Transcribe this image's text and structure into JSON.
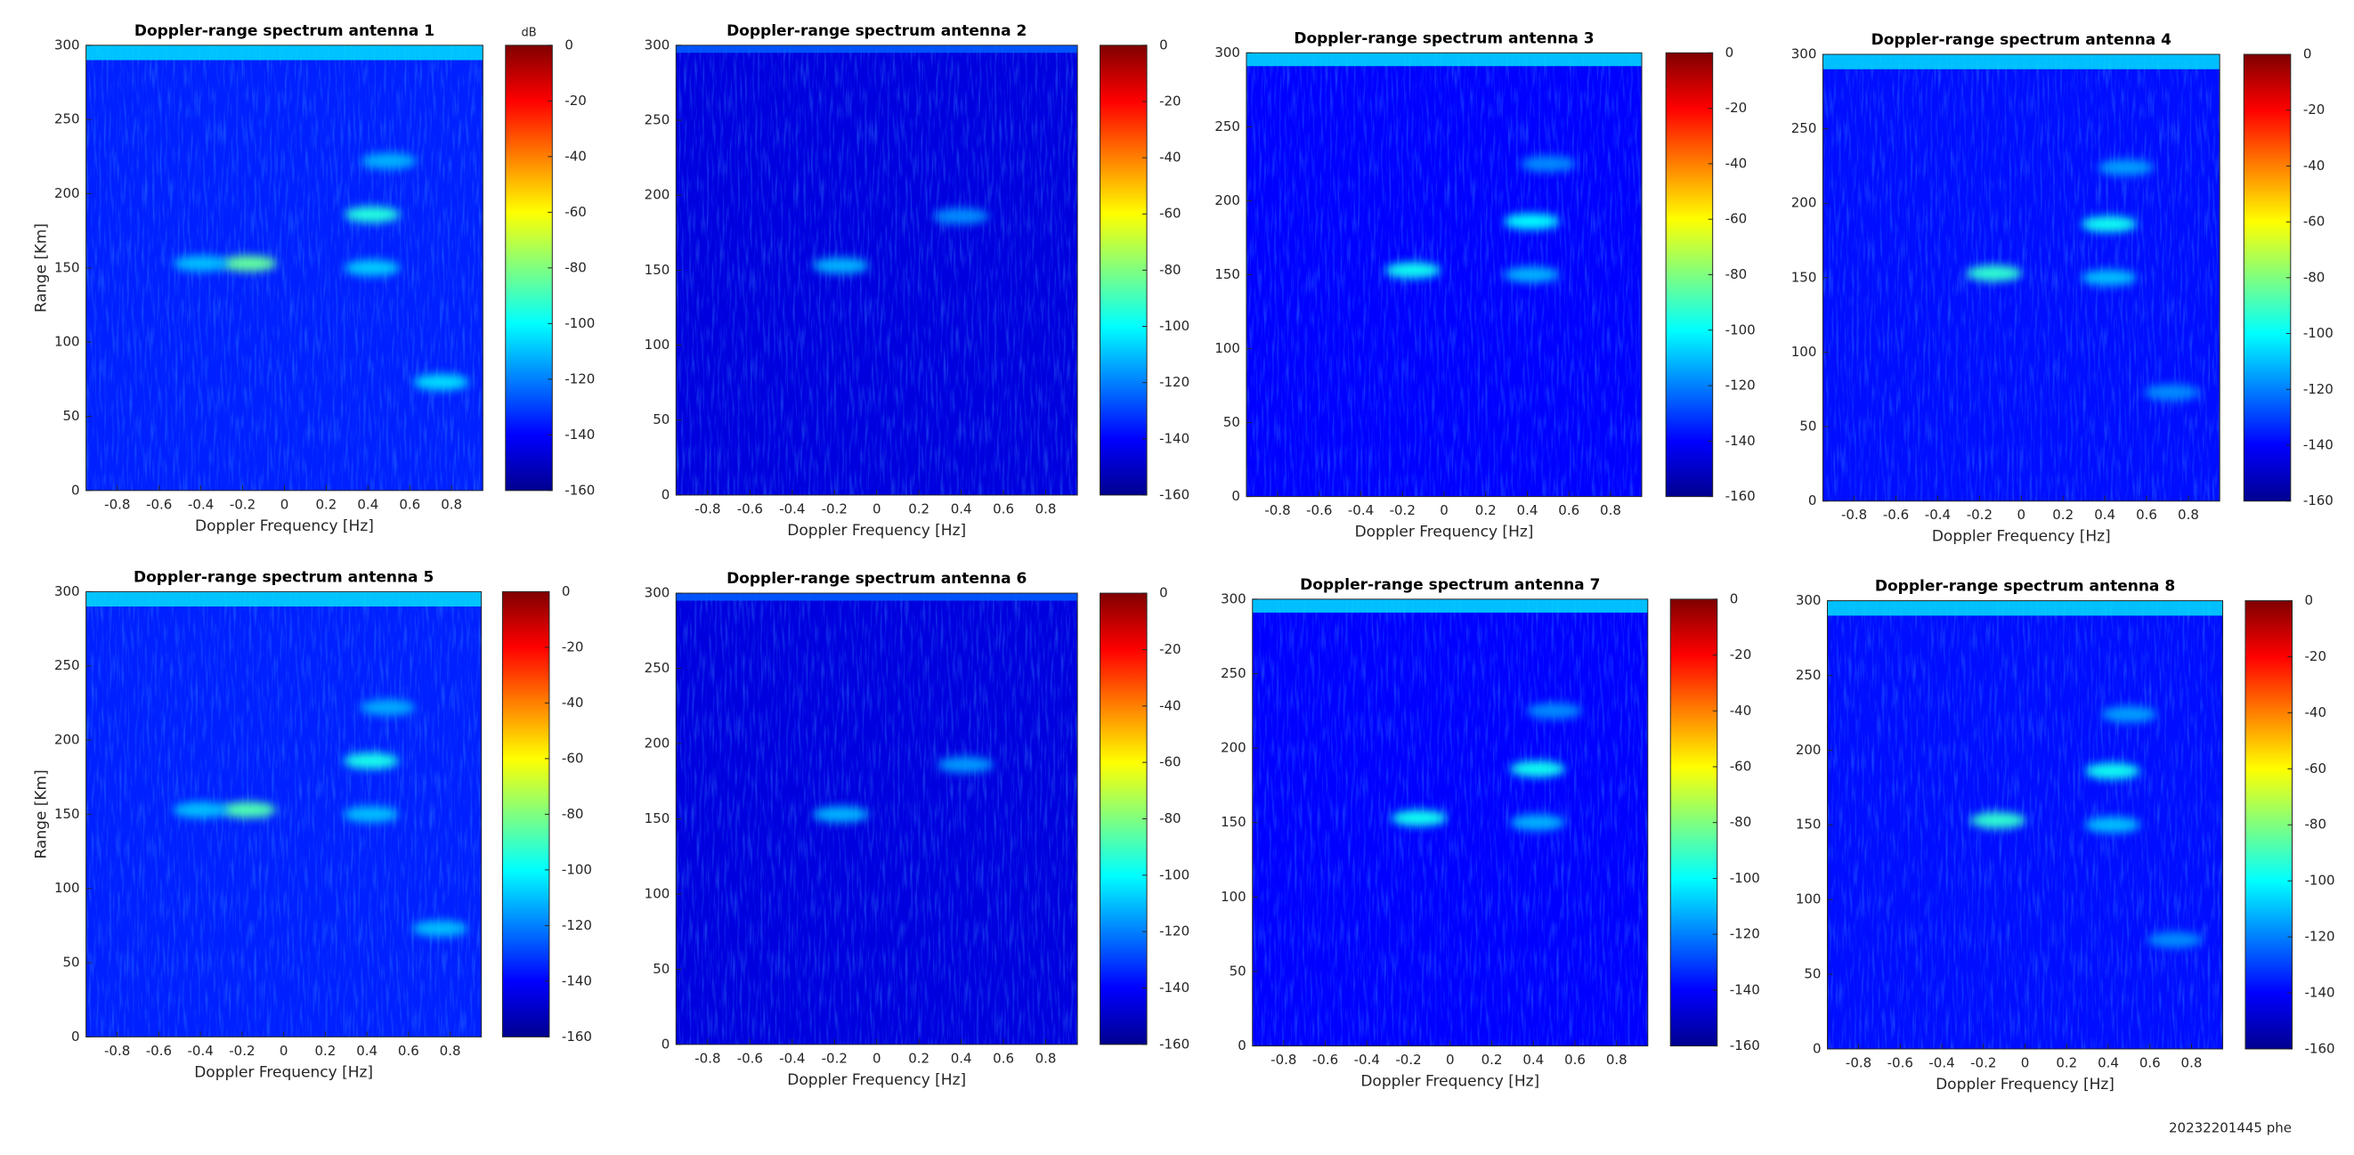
{
  "chart_data": [
    {
      "type": "heatmap",
      "title": "Doppler-range spectrum antenna 1",
      "xlabel": "Doppler Frequency [Hz]",
      "ylabel": "Range [Km]",
      "clabel": "dB",
      "xlim": [
        -0.95,
        0.95
      ],
      "xticks": [
        -0.8,
        -0.6,
        -0.4,
        -0.2,
        0,
        0.2,
        0.4,
        0.6,
        0.8
      ],
      "ylim": [
        0,
        300
      ],
      "yticks": [
        0,
        50,
        100,
        150,
        200,
        250,
        300
      ],
      "clim": [
        -160,
        0
      ],
      "cticks": [
        0,
        -20,
        -40,
        -60,
        -80,
        -100,
        -120,
        -140,
        -160
      ],
      "background": -135,
      "top_band_y": [
        290,
        300
      ],
      "top_band_value": -105,
      "spots": {
        "x": [
          -0.17,
          -0.4,
          0.42,
          0.42,
          0.5,
          0.75
        ],
        "y": [
          153,
          153,
          186,
          150,
          222,
          73
        ],
        "values": [
          -85,
          -110,
          -95,
          -108,
          -112,
          -105
        ]
      }
    },
    {
      "type": "heatmap",
      "title": "Doppler-range spectrum antenna 2",
      "xlabel": "Doppler Frequency [Hz]",
      "xlim": [
        -0.95,
        0.95
      ],
      "xticks": [
        -0.8,
        -0.6,
        -0.4,
        -0.2,
        0,
        0.2,
        0.4,
        0.6,
        0.8
      ],
      "ylim": [
        0,
        300
      ],
      "yticks": [
        0,
        50,
        100,
        150,
        200,
        250,
        300
      ],
      "clim": [
        -160,
        0
      ],
      "cticks": [
        0,
        -20,
        -40,
        -60,
        -80,
        -100,
        -120,
        -140,
        -160
      ],
      "background": -145,
      "top_band_y": [
        295,
        300
      ],
      "top_band_value": -125,
      "spots": {
        "x": [
          -0.17,
          0.4
        ],
        "y": [
          153,
          186
        ],
        "values": [
          -112,
          -118
        ]
      }
    },
    {
      "type": "heatmap",
      "title": "Doppler-range spectrum antenna 3",
      "xlabel": "Doppler Frequency [Hz]",
      "xlim": [
        -0.95,
        0.95
      ],
      "xticks": [
        -0.8,
        -0.6,
        -0.4,
        -0.2,
        0,
        0.2,
        0.4,
        0.6,
        0.8
      ],
      "ylim": [
        0,
        300
      ],
      "yticks": [
        0,
        50,
        100,
        150,
        200,
        250,
        300
      ],
      "clim": [
        -160,
        0
      ],
      "cticks": [
        0,
        -20,
        -40,
        -60,
        -80,
        -100,
        -120,
        -140,
        -160
      ],
      "background": -140,
      "top_band_y": [
        291,
        300
      ],
      "top_band_value": -105,
      "spots": {
        "x": [
          -0.15,
          0.42,
          0.42,
          0.5
        ],
        "y": [
          153,
          186,
          150,
          225
        ],
        "values": [
          -98,
          -100,
          -112,
          -118
        ]
      }
    },
    {
      "type": "heatmap",
      "title": "Doppler-range spectrum antenna 4",
      "xlabel": "Doppler Frequency [Hz]",
      "xlim": [
        -0.95,
        0.95
      ],
      "xticks": [
        -0.8,
        -0.6,
        -0.4,
        -0.2,
        0,
        0.2,
        0.4,
        0.6,
        0.8
      ],
      "ylim": [
        0,
        300
      ],
      "yticks": [
        0,
        50,
        100,
        150,
        200,
        250,
        300
      ],
      "clim": [
        -160,
        0
      ],
      "cticks": [
        0,
        -20,
        -40,
        -60,
        -80,
        -100,
        -120,
        -140,
        -160
      ],
      "background": -138,
      "top_band_y": [
        290,
        300
      ],
      "top_band_value": -105,
      "spots": {
        "x": [
          -0.13,
          0.42,
          0.42,
          0.5,
          0.72
        ],
        "y": [
          153,
          186,
          150,
          224,
          73
        ],
        "values": [
          -93,
          -98,
          -110,
          -115,
          -118
        ]
      }
    },
    {
      "type": "heatmap",
      "title": "Doppler-range spectrum antenna 5",
      "xlabel": "Doppler Frequency [Hz]",
      "ylabel": "Range [Km]",
      "xlim": [
        -0.95,
        0.95
      ],
      "xticks": [
        -0.8,
        -0.6,
        -0.4,
        -0.2,
        0,
        0.2,
        0.4,
        0.6,
        0.8
      ],
      "ylim": [
        0,
        300
      ],
      "yticks": [
        0,
        50,
        100,
        150,
        200,
        250,
        300
      ],
      "clim": [
        -160,
        0
      ],
      "cticks": [
        0,
        -20,
        -40,
        -60,
        -80,
        -100,
        -120,
        -140,
        -160
      ],
      "background": -135,
      "top_band_y": [
        290,
        300
      ],
      "top_band_value": -105,
      "spots": {
        "x": [
          -0.17,
          -0.4,
          0.42,
          0.42,
          0.5,
          0.75
        ],
        "y": [
          153,
          153,
          186,
          150,
          222,
          73
        ],
        "values": [
          -88,
          -110,
          -97,
          -110,
          -113,
          -110
        ]
      }
    },
    {
      "type": "heatmap",
      "title": "Doppler-range spectrum antenna 6",
      "xlabel": "Doppler Frequency [Hz]",
      "xlim": [
        -0.95,
        0.95
      ],
      "xticks": [
        -0.8,
        -0.6,
        -0.4,
        -0.2,
        0,
        0.2,
        0.4,
        0.6,
        0.8
      ],
      "ylim": [
        0,
        300
      ],
      "yticks": [
        0,
        50,
        100,
        150,
        200,
        250,
        300
      ],
      "clim": [
        -160,
        0
      ],
      "cticks": [
        0,
        -20,
        -40,
        -60,
        -80,
        -100,
        -120,
        -140,
        -160
      ],
      "background": -145,
      "top_band_y": [
        295,
        300
      ],
      "top_band_value": -125,
      "spots": {
        "x": [
          -0.17,
          0.42
        ],
        "y": [
          153,
          186
        ],
        "values": [
          -112,
          -116
        ]
      }
    },
    {
      "type": "heatmap",
      "title": "Doppler-range spectrum antenna 7",
      "xlabel": "Doppler Frequency [Hz]",
      "xlim": [
        -0.95,
        0.95
      ],
      "xticks": [
        -0.8,
        -0.6,
        -0.4,
        -0.2,
        0,
        0.2,
        0.4,
        0.6,
        0.8
      ],
      "ylim": [
        0,
        300
      ],
      "yticks": [
        0,
        50,
        100,
        150,
        200,
        250,
        300
      ],
      "clim": [
        -160,
        0
      ],
      "cticks": [
        0,
        -20,
        -40,
        -60,
        -80,
        -100,
        -120,
        -140,
        -160
      ],
      "background": -140,
      "top_band_y": [
        291,
        300
      ],
      "top_band_value": -105,
      "spots": {
        "x": [
          -0.15,
          0.42,
          0.42,
          0.5
        ],
        "y": [
          153,
          186,
          150,
          225
        ],
        "values": [
          -98,
          -98,
          -112,
          -118
        ]
      }
    },
    {
      "type": "heatmap",
      "title": "Doppler-range spectrum antenna 8",
      "xlabel": "Doppler Frequency [Hz]",
      "xlim": [
        -0.95,
        0.95
      ],
      "xticks": [
        -0.8,
        -0.6,
        -0.4,
        -0.2,
        0,
        0.2,
        0.4,
        0.6,
        0.8
      ],
      "ylim": [
        0,
        300
      ],
      "yticks": [
        0,
        50,
        100,
        150,
        200,
        250,
        300
      ],
      "clim": [
        -160,
        0
      ],
      "cticks": [
        0,
        -20,
        -40,
        -60,
        -80,
        -100,
        -120,
        -140,
        -160
      ],
      "background": -138,
      "top_band_y": [
        290,
        300
      ],
      "top_band_value": -105,
      "spots": {
        "x": [
          -0.13,
          0.42,
          0.42,
          0.5,
          0.72
        ],
        "y": [
          153,
          186,
          150,
          224,
          73
        ],
        "values": [
          -93,
          -98,
          -110,
          -115,
          -118
        ]
      }
    }
  ],
  "footer": "20232201445 phe"
}
